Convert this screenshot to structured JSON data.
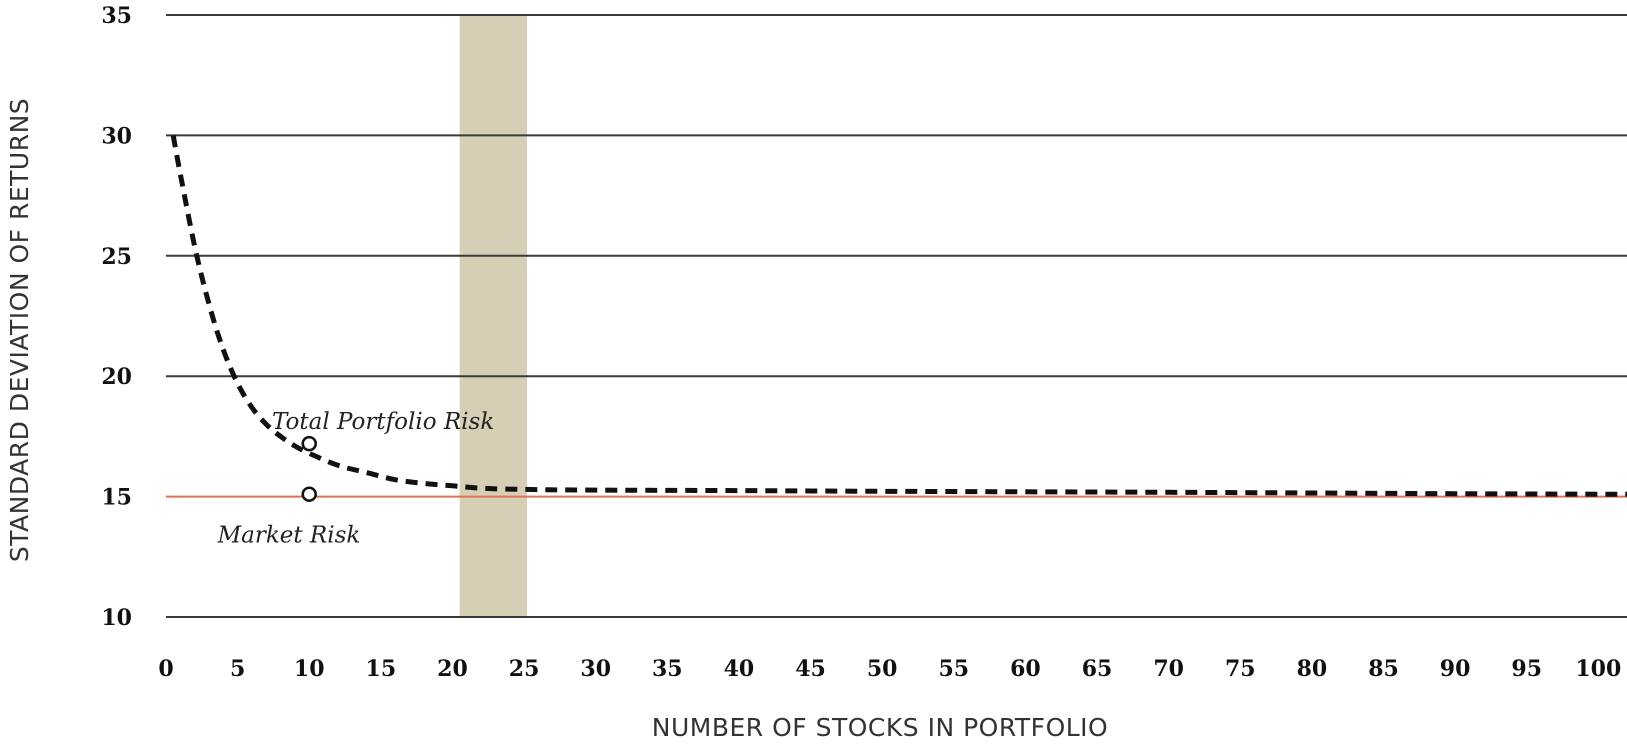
{
  "chart_data": {
    "type": "line",
    "title": "",
    "xlabel": "NUMBER OF STOCKS IN PORTFOLIO",
    "ylabel": "STANDARD DEVIATION OF RETURNS",
    "xlim": [
      0,
      102
    ],
    "ylim": [
      10,
      35
    ],
    "x_ticks": [
      0,
      5,
      10,
      15,
      20,
      25,
      30,
      35,
      40,
      45,
      50,
      55,
      60,
      65,
      70,
      75,
      80,
      85,
      90,
      95,
      100
    ],
    "y_ticks": [
      10,
      15,
      20,
      25,
      30,
      35
    ],
    "grid": true,
    "colors": {
      "grid": "#3a3a3a",
      "market_line": "#e07055",
      "band": "#d6cfb6",
      "curve": "#111111"
    },
    "highlight_band": {
      "x_start": 20.5,
      "x_end": 25.2
    },
    "market_risk_level": 15,
    "series": [
      {
        "style": "dashed",
        "x": [
          0.5,
          1,
          2,
          3,
          4,
          5,
          6,
          7,
          8,
          9,
          10,
          12,
          14,
          16,
          18,
          20,
          22,
          25,
          30,
          40,
          50,
          60,
          70,
          80,
          90,
          100,
          102
        ],
        "y": [
          30.0,
          28.4,
          25.4,
          23.0,
          21.1,
          19.7,
          18.7,
          18.0,
          17.5,
          17.1,
          16.8,
          16.3,
          16.0,
          15.7,
          15.55,
          15.45,
          15.35,
          15.3,
          15.27,
          15.25,
          15.22,
          15.2,
          15.18,
          15.15,
          15.12,
          15.1,
          15.1
        ]
      }
    ],
    "points": [
      {
        "x": 10,
        "y": 17.2
      },
      {
        "x": 10,
        "y": 15.1
      }
    ],
    "annotations": [
      {
        "text": "Total Portfolio Risk",
        "x": 7.4,
        "y": 17.8
      },
      {
        "text": "Market Risk",
        "x": 3.6,
        "y": 13.1
      }
    ]
  }
}
